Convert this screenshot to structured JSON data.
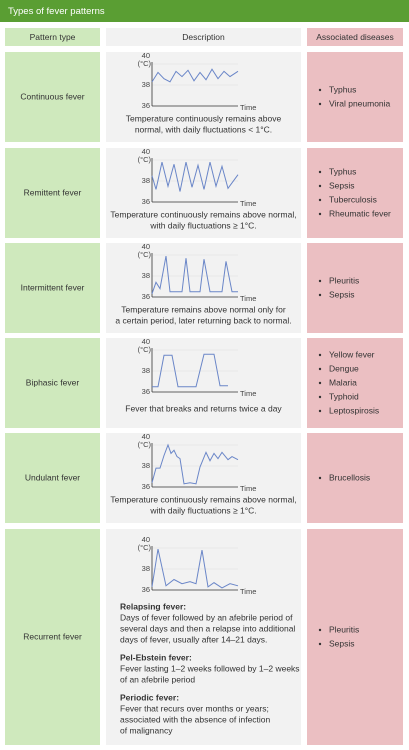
{
  "title": "Types of fever patterns",
  "header": {
    "pattern": "Pattern type",
    "description": "Description",
    "diseases": "Associated diseases"
  },
  "axis": {
    "y_top": "40",
    "y_unit": "(°C)",
    "y_mid": "38",
    "y_bottom": "36",
    "x": "Time"
  },
  "rows": [
    {
      "pattern": "Continuous fever",
      "description": [
        "Temperature continuously remains above",
        "normal, with daily fluctuations < 1°C."
      ],
      "diseases": [
        "Typhus",
        "Viral pneumonia"
      ]
    },
    {
      "pattern": "Remittent fever",
      "description": [
        "Temperature continuously remains above normal,",
        "with daily fluctuations ≥ 1°C."
      ],
      "diseases": [
        "Typhus",
        "Sepsis",
        "Tuberculosis",
        "Rheumatic fever"
      ]
    },
    {
      "pattern": "Intermittent fever",
      "description": [
        "Temperature remains above normal only for",
        "a certain period, later returning back to normal."
      ],
      "diseases": [
        "Pleuritis",
        "Sepsis"
      ]
    },
    {
      "pattern": "Biphasic fever",
      "description": [
        "Fever that breaks and returns twice a day"
      ],
      "diseases": [
        "Yellow fever",
        "Dengue",
        "Malaria",
        "Typhoid",
        "Leptospirosis"
      ]
    },
    {
      "pattern": "Undulant fever",
      "description": [
        "Temperature continuously remains above normal,",
        "with daily fluctuations ≥ 1°C."
      ],
      "diseases": [
        "Brucellosis"
      ]
    },
    {
      "pattern": "Recurrent fever",
      "subtypes": [
        {
          "name": "Relapsing fever:",
          "lines": [
            "Days of fever followed by an afebrile period of",
            "several days and then a relapse into additional",
            "days of fever, usually after 14–21 days."
          ]
        },
        {
          "name": "Pel-Ebstein fever:",
          "lines": [
            "Fever lasting 1–2 weeks followed by 1–2 weeks",
            "of an afebrile period"
          ]
        },
        {
          "name": "Periodic fever:",
          "lines": [
            "Fever that recurs over months or years;",
            "associated with the absence of infection",
            "of malignancy"
          ]
        }
      ],
      "diseases": [
        "Pleuritis",
        "Sepsis"
      ]
    }
  ]
}
